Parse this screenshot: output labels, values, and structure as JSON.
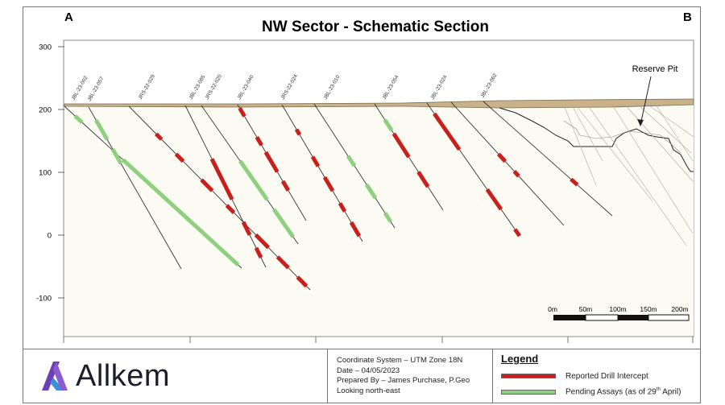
{
  "diagram": {
    "title": "NW Sector - Schematic Section",
    "corner_left": "A",
    "corner_right": "B",
    "y_axis": {
      "ticks": [
        300,
        200,
        100,
        0,
        -100
      ],
      "min": -160,
      "max": 310
    },
    "pit_label": "Reserve Pit",
    "scale_bar": {
      "labels": [
        "0m",
        "50m",
        "100m",
        "150m",
        "200m"
      ]
    },
    "holes": [
      {
        "name": "JBL-23-002"
      },
      {
        "name": "JBL-23-057"
      },
      {
        "name": "JRS-22-029"
      },
      {
        "name": "JBL-23-085"
      },
      {
        "name": "JRS-22-020"
      },
      {
        "name": "JBL-23-040"
      },
      {
        "name": "JRS-22-024"
      },
      {
        "name": "JBL-23-010"
      },
      {
        "name": "JBL-23-054"
      },
      {
        "name": "JBL-23-024"
      },
      {
        "name": "JBL-23-062"
      }
    ],
    "colors": {
      "intercept": "#c8201d",
      "pending": "#8ed07f",
      "overburden": "#c9b28a",
      "section_fill": "#fbfbf2",
      "trace": "#333333"
    }
  },
  "footer": {
    "logo_text": "Allkem",
    "info_lines": [
      "Coordinate System – UTM Zone 18N",
      "Date – 04/05/2023",
      "Prepared By – James Purchase, P.Geo",
      "Looking north-east"
    ],
    "legend": {
      "title": "Legend",
      "intercept_label": "Reported Drill Intercept",
      "pending_label_main": "Pending Assays (as of 29",
      "pending_label_sup": "th",
      "pending_label_end": " April)"
    }
  }
}
